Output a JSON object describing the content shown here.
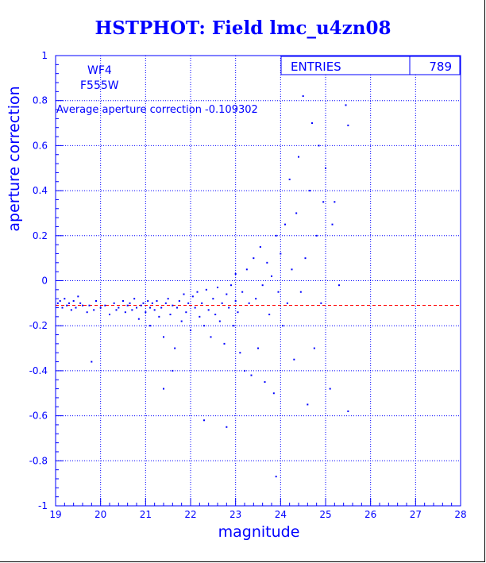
{
  "chart_data": {
    "type": "scatter",
    "title": "HSTPHOT: Field lmc_u4zn08",
    "xlabel": "magnitude",
    "ylabel": "aperture correction",
    "xlim": [
      19,
      28
    ],
    "ylim": [
      -1,
      1
    ],
    "x_ticks": [
      "19",
      "20",
      "21",
      "22",
      "23",
      "24",
      "25",
      "26",
      "27",
      "28"
    ],
    "y_ticks": [
      "-1",
      "-0.8",
      "-0.6",
      "-0.4",
      "-0.2",
      "0",
      "0.2",
      "0.4",
      "0.6",
      "0.8",
      "1"
    ],
    "grid": true,
    "stats_box": {
      "label": "ENTRIES",
      "value": "789"
    },
    "annotations": {
      "chip": "WF4",
      "filter": "F555W",
      "average_text": "Average aperture correction -0.109302"
    },
    "average_line": -0.109302,
    "colors": {
      "points": "#0000ff",
      "axes": "#0000ff",
      "average_line": "#ff0000",
      "title": "#0000ff"
    },
    "series": [
      {
        "points": [
          [
            19.05,
            -0.1
          ],
          [
            19.1,
            -0.09
          ],
          [
            19.15,
            -0.12
          ],
          [
            19.2,
            -0.08
          ],
          [
            19.25,
            -0.11
          ],
          [
            19.3,
            -0.1
          ],
          [
            19.35,
            -0.13
          ],
          [
            19.4,
            -0.09
          ],
          [
            19.45,
            -0.12
          ],
          [
            19.5,
            -0.07
          ],
          [
            19.55,
            -0.1
          ],
          [
            19.6,
            -0.11
          ],
          [
            19.7,
            -0.14
          ],
          [
            19.75,
            -0.11
          ],
          [
            19.8,
            -0.36
          ],
          [
            19.85,
            -0.13
          ],
          [
            19.9,
            -0.09
          ],
          [
            20.0,
            -0.12
          ],
          [
            20.1,
            -0.11
          ],
          [
            20.2,
            -0.15
          ],
          [
            20.3,
            -0.1
          ],
          [
            20.35,
            -0.13
          ],
          [
            20.4,
            -0.12
          ],
          [
            20.5,
            -0.09
          ],
          [
            20.55,
            -0.14
          ],
          [
            20.6,
            -0.11
          ],
          [
            20.65,
            -0.1
          ],
          [
            20.7,
            -0.13
          ],
          [
            20.75,
            -0.08
          ],
          [
            20.8,
            -0.12
          ],
          [
            20.85,
            -0.17
          ],
          [
            20.9,
            -0.11
          ],
          [
            20.95,
            -0.1
          ],
          [
            21.0,
            -0.14
          ],
          [
            21.05,
            -0.09
          ],
          [
            21.1,
            -0.12
          ],
          [
            21.1,
            -0.2
          ],
          [
            21.15,
            -0.1
          ],
          [
            21.2,
            -0.13
          ],
          [
            21.25,
            -0.09
          ],
          [
            21.3,
            -0.16
          ],
          [
            21.35,
            -0.12
          ],
          [
            21.4,
            -0.25
          ],
          [
            21.45,
            -0.1
          ],
          [
            21.5,
            -0.08
          ],
          [
            21.55,
            -0.15
          ],
          [
            21.6,
            -0.11
          ],
          [
            21.65,
            -0.3
          ],
          [
            21.7,
            -0.12
          ],
          [
            21.75,
            -0.09
          ],
          [
            21.8,
            -0.18
          ],
          [
            21.85,
            -0.06
          ],
          [
            21.9,
            -0.14
          ],
          [
            21.95,
            -0.1
          ],
          [
            22.0,
            -0.22
          ],
          [
            22.05,
            -0.07
          ],
          [
            22.1,
            -0.12
          ],
          [
            22.15,
            -0.05
          ],
          [
            22.2,
            -0.16
          ],
          [
            22.25,
            -0.1
          ],
          [
            22.3,
            -0.2
          ],
          [
            22.35,
            -0.04
          ],
          [
            22.4,
            -0.13
          ],
          [
            22.45,
            -0.25
          ],
          [
            22.5,
            -0.08
          ],
          [
            22.55,
            -0.15
          ],
          [
            22.6,
            -0.03
          ],
          [
            22.65,
            -0.18
          ],
          [
            22.7,
            -0.1
          ],
          [
            22.75,
            -0.28
          ],
          [
            22.8,
            -0.06
          ],
          [
            22.85,
            -0.12
          ],
          [
            22.9,
            -0.02
          ],
          [
            22.95,
            -0.2
          ],
          [
            23.0,
            -0.09
          ],
          [
            23.0,
            0.03
          ],
          [
            23.05,
            -0.14
          ],
          [
            23.1,
            -0.32
          ],
          [
            23.15,
            -0.05
          ],
          [
            23.2,
            -0.4
          ],
          [
            23.25,
            0.05
          ],
          [
            23.3,
            -0.1
          ],
          [
            23.35,
            -0.42
          ],
          [
            23.4,
            0.1
          ],
          [
            23.45,
            -0.08
          ],
          [
            23.5,
            -0.3
          ],
          [
            23.55,
            0.15
          ],
          [
            23.6,
            -0.02
          ],
          [
            23.65,
            -0.45
          ],
          [
            23.7,
            0.08
          ],
          [
            23.75,
            -0.15
          ],
          [
            23.8,
            0.02
          ],
          [
            23.85,
            -0.5
          ],
          [
            23.9,
            0.2
          ],
          [
            23.95,
            -0.05
          ],
          [
            24.0,
            0.12
          ],
          [
            24.05,
            -0.2
          ],
          [
            24.1,
            0.25
          ],
          [
            24.15,
            -0.1
          ],
          [
            24.2,
            0.45
          ],
          [
            24.25,
            0.05
          ],
          [
            24.3,
            -0.35
          ],
          [
            24.35,
            0.3
          ],
          [
            24.4,
            0.55
          ],
          [
            24.45,
            -0.05
          ],
          [
            24.5,
            0.82
          ],
          [
            24.55,
            0.1
          ],
          [
            24.6,
            -0.55
          ],
          [
            24.65,
            0.4
          ],
          [
            24.7,
            0.7
          ],
          [
            24.75,
            -0.3
          ],
          [
            24.8,
            0.2
          ],
          [
            24.85,
            0.6
          ],
          [
            24.9,
            -0.1
          ],
          [
            24.95,
            0.35
          ],
          [
            25.0,
            0.5
          ],
          [
            25.1,
            -0.48
          ],
          [
            25.15,
            0.25
          ],
          [
            25.2,
            0.35
          ],
          [
            25.3,
            -0.02
          ],
          [
            25.45,
            0.78
          ],
          [
            25.5,
            -0.58
          ],
          [
            25.5,
            0.69
          ],
          [
            21.4,
            -0.48
          ],
          [
            21.6,
            -0.4
          ],
          [
            22.3,
            -0.62
          ],
          [
            22.8,
            -0.65
          ],
          [
            23.9,
            -0.87
          ]
        ]
      }
    ]
  }
}
